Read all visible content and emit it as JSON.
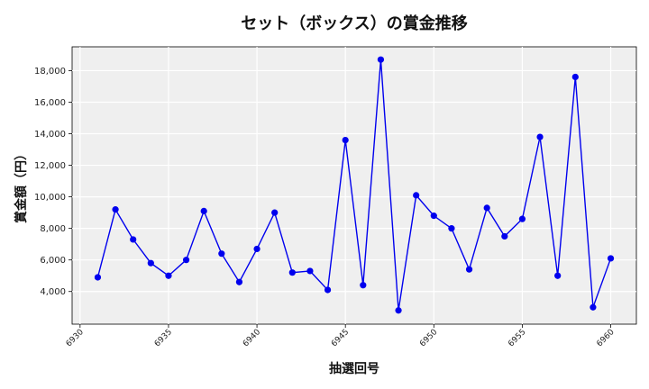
{
  "chart_data": {
    "type": "line",
    "title": "セット（ボックス）の賞金推移",
    "xlabel": "抽選回号",
    "ylabel": "賞金額（円）",
    "xlim": [
      6929.55,
      6961.45
    ],
    "ylim": [
      1930,
      19510
    ],
    "xticks": [
      6930,
      6935,
      6940,
      6945,
      6950,
      6955,
      6960
    ],
    "xtick_labels": [
      "6930",
      "6935",
      "6940",
      "6945",
      "6950",
      "6955",
      "6960"
    ],
    "yticks": [
      4000,
      6000,
      8000,
      10000,
      12000,
      14000,
      16000,
      18000
    ],
    "ytick_labels": [
      "4,000",
      "6,000",
      "8,000",
      "10,000",
      "12,000",
      "14,000",
      "16,000",
      "18,000"
    ],
    "grid": true,
    "line_color": "#0000ee",
    "marker_color": "#0000ee",
    "x": [
      6931,
      6932,
      6933,
      6934,
      6935,
      6936,
      6937,
      6938,
      6939,
      6940,
      6941,
      6942,
      6943,
      6944,
      6945,
      6946,
      6947,
      6948,
      6949,
      6950,
      6951,
      6952,
      6953,
      6954,
      6955,
      6956,
      6957,
      6958,
      6959,
      6960
    ],
    "values": [
      4900,
      9200,
      7300,
      5800,
      5000,
      6000,
      9100,
      6400,
      4600,
      6700,
      9000,
      5200,
      5300,
      4100,
      13600,
      4400,
      18700,
      2800,
      10100,
      8800,
      8000,
      5400,
      9300,
      7500,
      8600,
      13800,
      5000,
      17600,
      3000,
      6100
    ]
  }
}
